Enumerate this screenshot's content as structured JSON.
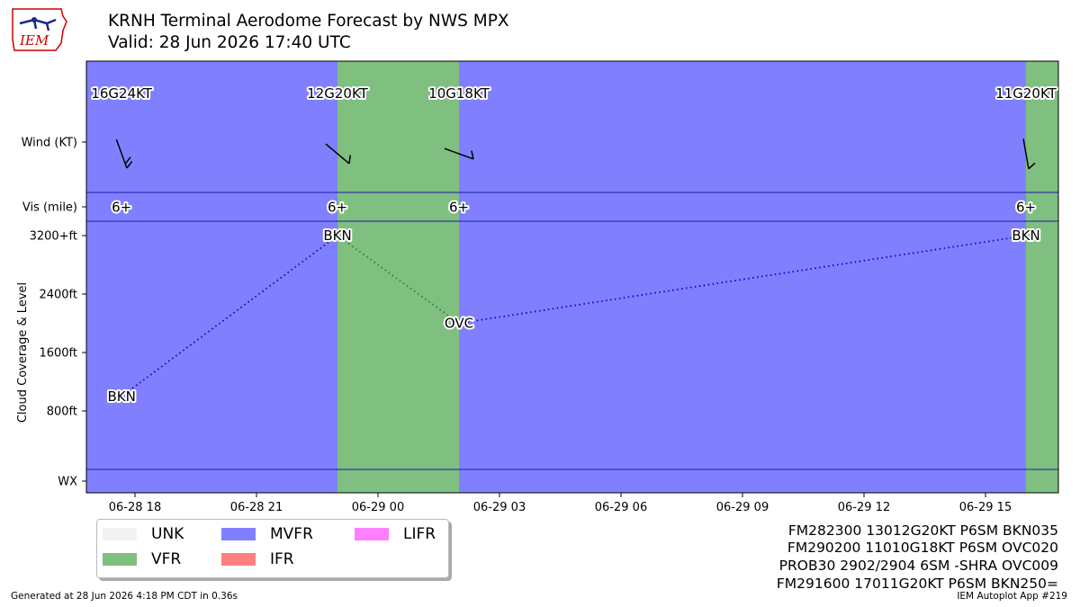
{
  "header": {
    "title": "KRNH Terminal Aerodome Forecast by NWS MPX",
    "valid": "Valid: 28 Jun 2026 17:40 UTC"
  },
  "logo": {
    "text": "IEM"
  },
  "colors": {
    "VFR": "#7fbf7f",
    "MVFR": "#8080ff",
    "IFR": "#ff8080",
    "LIFR": "#ff80ff",
    "UNK": "#f2f2f2",
    "cloud_line_mvfr": "#0000cc",
    "cloud_line_vfr": "#2e7d32"
  },
  "legend": {
    "items": [
      {
        "label": "UNK",
        "color": "#f2f2f2"
      },
      {
        "label": "VFR",
        "color": "#7fbf7f"
      },
      {
        "label": "MVFR",
        "color": "#8080ff"
      },
      {
        "label": "IFR",
        "color": "#ff8080"
      },
      {
        "label": "LIFR",
        "color": "#ff80ff"
      }
    ]
  },
  "taf_lines": [
    "FM282300 13012G20KT P6SM BKN035",
    "FM290200 11010G18KT P6SM OVC020",
    "PROB30 2902/2904 6SM -SHRA OVC009",
    "FM291600 17011G20KT P6SM BKN250="
  ],
  "footer": {
    "left": "Generated at 28 Jun 2026 4:18 PM CDT in 0.36s",
    "right": "IEM Autoplot App #219"
  },
  "chart_data": {
    "type": "timeline",
    "x_range_hours_utc": [
      16.8,
      40.8
    ],
    "x_ticks": [
      {
        "hour": 18,
        "label": "06-28 18"
      },
      {
        "hour": 21,
        "label": "06-28 21"
      },
      {
        "hour": 24,
        "label": "06-29 00"
      },
      {
        "hour": 27,
        "label": "06-29 03"
      },
      {
        "hour": 30,
        "label": "06-29 06"
      },
      {
        "hour": 33,
        "label": "06-29 09"
      },
      {
        "hour": 36,
        "label": "06-29 12"
      },
      {
        "hour": 39,
        "label": "06-29 15"
      }
    ],
    "row_labels": [
      "Wind (KT)",
      "Vis (mile)",
      "WX"
    ],
    "ylabel": "Cloud Coverage & Level",
    "cloud_ticks": [
      "3200+ft",
      "2400ft",
      "1600ft",
      "800ft"
    ],
    "cloud_tick_values": [
      3200,
      2400,
      1600,
      800
    ],
    "category_spans": [
      {
        "start": 16.8,
        "end": 23.0,
        "category": "MVFR"
      },
      {
        "start": 23.0,
        "end": 26.0,
        "category": "VFR"
      },
      {
        "start": 26.0,
        "end": 40.0,
        "category": "MVFR"
      },
      {
        "start": 40.0,
        "end": 40.8,
        "category": "VFR"
      }
    ],
    "forecasts": [
      {
        "hour": 17.67,
        "wind": "16G24KT",
        "wind_dir": 160,
        "wind_speed": 16,
        "vis": "6+",
        "cover": "BKN",
        "level": 1000
      },
      {
        "hour": 23.0,
        "wind": "12G20KT",
        "wind_dir": 130,
        "wind_speed": 12,
        "vis": "6+",
        "cover": "BKN",
        "level": 3200
      },
      {
        "hour": 26.0,
        "wind": "10G18KT",
        "wind_dir": 110,
        "wind_speed": 10,
        "vis": "6+",
        "cover": "OVC",
        "level": 2000
      },
      {
        "hour": 40.0,
        "wind": "11G20KT",
        "wind_dir": 170,
        "wind_speed": 11,
        "vis": "6+",
        "cover": "BKN",
        "level": 3200
      }
    ]
  }
}
